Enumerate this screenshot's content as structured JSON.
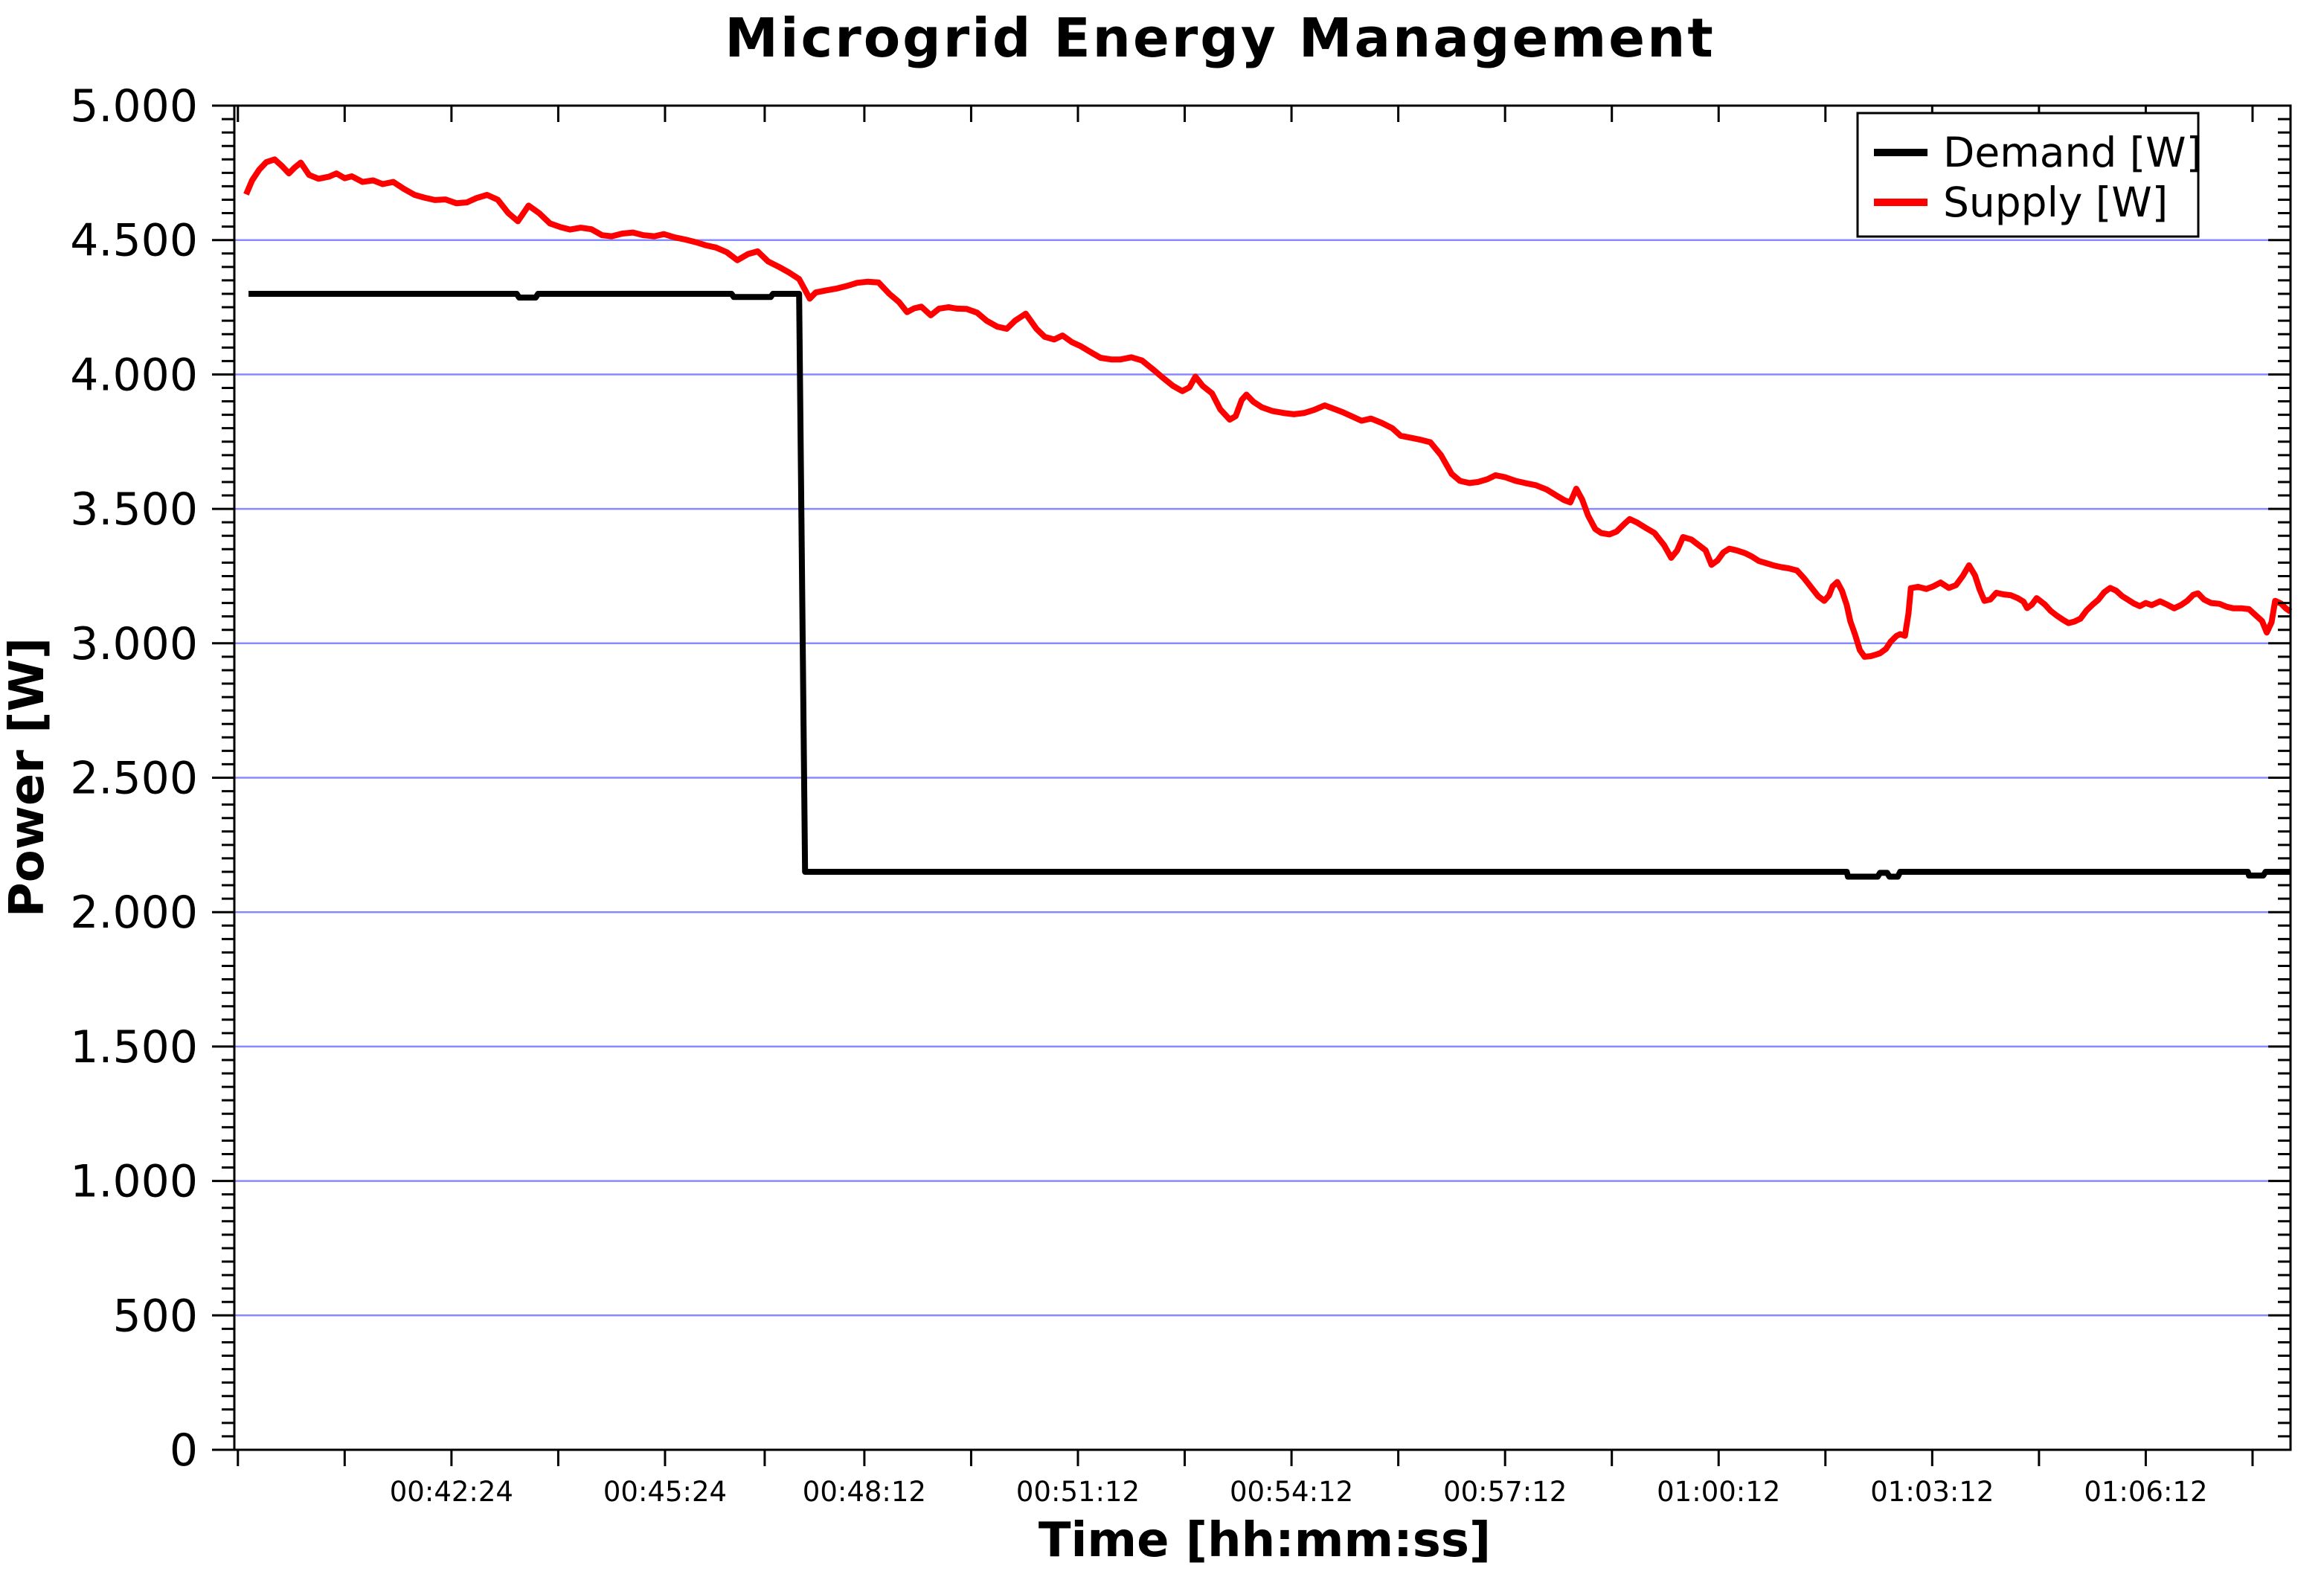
{
  "title": "Microgrid Energy Management",
  "x_axis": {
    "label": "Time [hh:mm:ss]"
  },
  "y_axis": {
    "label": "Power [W]",
    "tick_labels": [
      "0",
      "500",
      "1.000",
      "1.500",
      "2.000",
      "2.500",
      "3.000",
      "3.500",
      "4.000",
      "4.500",
      "5.000"
    ]
  },
  "legend": {
    "entries": [
      {
        "label": "Demand [W]",
        "color": "#000000"
      },
      {
        "label": "Supply [W]",
        "color": "#ff0000"
      }
    ]
  },
  "colors": {
    "background": "#ffffff",
    "axis": "#000000",
    "grid": "#8888ff",
    "demand": "#000000",
    "supply": "#ff0000"
  },
  "chart_data": {
    "type": "line",
    "title": "Microgrid Energy Management",
    "xlabel": "Time [hh:mm:ss]",
    "ylabel": "Power [W]",
    "x_unit": "seconds since 00:00:00",
    "xlim": [
      2361,
      4094
    ],
    "ylim": [
      0,
      5000
    ],
    "y_major_step": 500,
    "y_minor_step": 50,
    "grid": "horizontal major gridlines only, light blue",
    "legend_position": "top-right inside plot",
    "x_tick_labels": [
      {
        "t": 2544,
        "label": "00:42:24"
      },
      {
        "t": 2724,
        "label": "00:45:24"
      },
      {
        "t": 2892,
        "label": "00:48:12"
      },
      {
        "t": 3072,
        "label": "00:51:12"
      },
      {
        "t": 3252,
        "label": "00:54:12"
      },
      {
        "t": 3432,
        "label": "00:57:12"
      },
      {
        "t": 3612,
        "label": "01:00:12"
      },
      {
        "t": 3792,
        "label": "01:03:12"
      },
      {
        "t": 3972,
        "label": "01:06:12"
      }
    ],
    "x_minor_ticks": [
      2364,
      2454,
      2634,
      2808,
      2982,
      3162,
      3342,
      3522,
      3702,
      3882,
      4062
    ],
    "series": [
      {
        "name": "Demand [W]",
        "color": "#000000",
        "points": [
          [
            2373,
            4300
          ],
          [
            2599,
            4300
          ],
          [
            2601,
            4286
          ],
          [
            2615,
            4286
          ],
          [
            2617,
            4300
          ],
          [
            2780,
            4300
          ],
          [
            2782,
            4288
          ],
          [
            2813,
            4288
          ],
          [
            2815,
            4300
          ],
          [
            2837,
            4300
          ],
          [
            2842,
            2150
          ],
          [
            3720,
            2150
          ],
          [
            3721,
            2132
          ],
          [
            3746,
            2132
          ],
          [
            3748,
            2146
          ],
          [
            3754,
            2146
          ],
          [
            3756,
            2132
          ],
          [
            3763,
            2132
          ],
          [
            3765,
            2150
          ],
          [
            4058,
            2150
          ],
          [
            4059,
            2136
          ],
          [
            4071,
            2136
          ],
          [
            4073,
            2150
          ],
          [
            4094,
            2150
          ]
        ]
      },
      {
        "name": "Supply [W]",
        "color": "#ff0000",
        "points": [
          [
            2371,
            4670
          ],
          [
            2376,
            4722
          ],
          [
            2382,
            4762
          ],
          [
            2388,
            4790
          ],
          [
            2395,
            4800
          ],
          [
            2401,
            4776
          ],
          [
            2407,
            4748
          ],
          [
            2412,
            4770
          ],
          [
            2417,
            4788
          ],
          [
            2424,
            4742
          ],
          [
            2432,
            4728
          ],
          [
            2441,
            4736
          ],
          [
            2447,
            4748
          ],
          [
            2454,
            4730
          ],
          [
            2460,
            4737
          ],
          [
            2469,
            4716
          ],
          [
            2478,
            4722
          ],
          [
            2486,
            4708
          ],
          [
            2495,
            4716
          ],
          [
            2504,
            4690
          ],
          [
            2513,
            4668
          ],
          [
            2521,
            4658
          ],
          [
            2530,
            4649
          ],
          [
            2539,
            4651
          ],
          [
            2548,
            4637
          ],
          [
            2557,
            4640
          ],
          [
            2565,
            4656
          ],
          [
            2574,
            4668
          ],
          [
            2583,
            4650
          ],
          [
            2592,
            4600
          ],
          [
            2600,
            4570
          ],
          [
            2609,
            4628
          ],
          [
            2618,
            4600
          ],
          [
            2627,
            4562
          ],
          [
            2636,
            4548
          ],
          [
            2644,
            4539
          ],
          [
            2653,
            4546
          ],
          [
            2662,
            4540
          ],
          [
            2671,
            4518
          ],
          [
            2679,
            4514
          ],
          [
            2688,
            4524
          ],
          [
            2697,
            4528
          ],
          [
            2706,
            4518
          ],
          [
            2715,
            4514
          ],
          [
            2723,
            4522
          ],
          [
            2732,
            4510
          ],
          [
            2741,
            4502
          ],
          [
            2750,
            4492
          ],
          [
            2758,
            4481
          ],
          [
            2767,
            4472
          ],
          [
            2776,
            4455
          ],
          [
            2785,
            4425
          ],
          [
            2794,
            4448
          ],
          [
            2802,
            4458
          ],
          [
            2811,
            4420
          ],
          [
            2820,
            4400
          ],
          [
            2829,
            4378
          ],
          [
            2837,
            4355
          ],
          [
            2846,
            4282
          ],
          [
            2851,
            4305
          ],
          [
            2860,
            4313
          ],
          [
            2869,
            4320
          ],
          [
            2878,
            4330
          ],
          [
            2886,
            4341
          ],
          [
            2895,
            4345
          ],
          [
            2904,
            4342
          ],
          [
            2913,
            4300
          ],
          [
            2921,
            4270
          ],
          [
            2928,
            4232
          ],
          [
            2934,
            4246
          ],
          [
            2940,
            4252
          ],
          [
            2948,
            4220
          ],
          [
            2955,
            4245
          ],
          [
            2963,
            4250
          ],
          [
            2970,
            4245
          ],
          [
            2978,
            4244
          ],
          [
            2987,
            4230
          ],
          [
            2995,
            4200
          ],
          [
            3004,
            4178
          ],
          [
            3012,
            4170
          ],
          [
            3019,
            4200
          ],
          [
            3028,
            4226
          ],
          [
            3037,
            4170
          ],
          [
            3044,
            4140
          ],
          [
            3052,
            4130
          ],
          [
            3059,
            4145
          ],
          [
            3067,
            4120
          ],
          [
            3074,
            4106
          ],
          [
            3082,
            4085
          ],
          [
            3091,
            4062
          ],
          [
            3100,
            4056
          ],
          [
            3108,
            4056
          ],
          [
            3117,
            4064
          ],
          [
            3126,
            4052
          ],
          [
            3135,
            4020
          ],
          [
            3143,
            3990
          ],
          [
            3152,
            3958
          ],
          [
            3160,
            3938
          ],
          [
            3166,
            3952
          ],
          [
            3171,
            3992
          ],
          [
            3177,
            3958
          ],
          [
            3185,
            3930
          ],
          [
            3192,
            3870
          ],
          [
            3200,
            3832
          ],
          [
            3205,
            3845
          ],
          [
            3210,
            3905
          ],
          [
            3214,
            3925
          ],
          [
            3220,
            3898
          ],
          [
            3227,
            3878
          ],
          [
            3236,
            3864
          ],
          [
            3245,
            3857
          ],
          [
            3254,
            3852
          ],
          [
            3263,
            3857
          ],
          [
            3271,
            3868
          ],
          [
            3280,
            3885
          ],
          [
            3288,
            3872
          ],
          [
            3295,
            3860
          ],
          [
            3304,
            3842
          ],
          [
            3311,
            3828
          ],
          [
            3319,
            3836
          ],
          [
            3328,
            3820
          ],
          [
            3337,
            3800
          ],
          [
            3344,
            3772
          ],
          [
            3352,
            3765
          ],
          [
            3360,
            3758
          ],
          [
            3369,
            3748
          ],
          [
            3378,
            3700
          ],
          [
            3387,
            3630
          ],
          [
            3394,
            3604
          ],
          [
            3402,
            3596
          ],
          [
            3409,
            3600
          ],
          [
            3417,
            3610
          ],
          [
            3424,
            3625
          ],
          [
            3432,
            3618
          ],
          [
            3441,
            3604
          ],
          [
            3449,
            3596
          ],
          [
            3458,
            3588
          ],
          [
            3467,
            3572
          ],
          [
            3476,
            3548
          ],
          [
            3482,
            3532
          ],
          [
            3487,
            3524
          ],
          [
            3492,
            3575
          ],
          [
            3497,
            3535
          ],
          [
            3502,
            3475
          ],
          [
            3508,
            3425
          ],
          [
            3513,
            3410
          ],
          [
            3520,
            3405
          ],
          [
            3526,
            3416
          ],
          [
            3532,
            3442
          ],
          [
            3537,
            3462
          ],
          [
            3543,
            3450
          ],
          [
            3551,
            3428
          ],
          [
            3558,
            3410
          ],
          [
            3566,
            3365
          ],
          [
            3572,
            3318
          ],
          [
            3577,
            3345
          ],
          [
            3582,
            3395
          ],
          [
            3589,
            3386
          ],
          [
            3595,
            3366
          ],
          [
            3601,
            3346
          ],
          [
            3606,
            3292
          ],
          [
            3611,
            3308
          ],
          [
            3616,
            3338
          ],
          [
            3621,
            3352
          ],
          [
            3627,
            3346
          ],
          [
            3634,
            3336
          ],
          [
            3640,
            3323
          ],
          [
            3646,
            3306
          ],
          [
            3653,
            3297
          ],
          [
            3659,
            3289
          ],
          [
            3665,
            3283
          ],
          [
            3671,
            3279
          ],
          [
            3678,
            3271
          ],
          [
            3684,
            3242
          ],
          [
            3690,
            3208
          ],
          [
            3696,
            3175
          ],
          [
            3701,
            3158
          ],
          [
            3705,
            3178
          ],
          [
            3708,
            3212
          ],
          [
            3712,
            3228
          ],
          [
            3716,
            3195
          ],
          [
            3720,
            3142
          ],
          [
            3723,
            3082
          ],
          [
            3727,
            3032
          ],
          [
            3731,
            2975
          ],
          [
            3735,
            2950
          ],
          [
            3740,
            2952
          ],
          [
            3744,
            2957
          ],
          [
            3748,
            2963
          ],
          [
            3753,
            2979
          ],
          [
            3757,
            3006
          ],
          [
            3762,
            3028
          ],
          [
            3765,
            3034
          ],
          [
            3769,
            3028
          ],
          [
            3772,
            3110
          ],
          [
            3774,
            3205
          ],
          [
            3780,
            3210
          ],
          [
            3787,
            3202
          ],
          [
            3793,
            3212
          ],
          [
            3799,
            3226
          ],
          [
            3806,
            3206
          ],
          [
            3812,
            3216
          ],
          [
            3818,
            3252
          ],
          [
            3823,
            3290
          ],
          [
            3828,
            3253
          ],
          [
            3832,
            3200
          ],
          [
            3836,
            3158
          ],
          [
            3841,
            3163
          ],
          [
            3846,
            3188
          ],
          [
            3852,
            3182
          ],
          [
            3858,
            3179
          ],
          [
            3864,
            3168
          ],
          [
            3869,
            3155
          ],
          [
            3872,
            3131
          ],
          [
            3876,
            3144
          ],
          [
            3880,
            3168
          ],
          [
            3883,
            3158
          ],
          [
            3887,
            3144
          ],
          [
            3892,
            3120
          ],
          [
            3897,
            3103
          ],
          [
            3902,
            3088
          ],
          [
            3907,
            3075
          ],
          [
            3912,
            3081
          ],
          [
            3917,
            3092
          ],
          [
            3922,
            3122
          ],
          [
            3927,
            3143
          ],
          [
            3932,
            3162
          ],
          [
            3937,
            3190
          ],
          [
            3942,
            3206
          ],
          [
            3947,
            3196
          ],
          [
            3952,
            3176
          ],
          [
            3957,
            3162
          ],
          [
            3962,
            3148
          ],
          [
            3967,
            3138
          ],
          [
            3972,
            3150
          ],
          [
            3977,
            3142
          ],
          [
            3984,
            3156
          ],
          [
            3990,
            3144
          ],
          [
            3996,
            3130
          ],
          [
            4002,
            3143
          ],
          [
            4007,
            3158
          ],
          [
            4012,
            3180
          ],
          [
            4016,
            3186
          ],
          [
            4021,
            3163
          ],
          [
            4027,
            3150
          ],
          [
            4034,
            3147
          ],
          [
            4040,
            3136
          ],
          [
            4046,
            3130
          ],
          [
            4053,
            3130
          ],
          [
            4059,
            3127
          ],
          [
            4065,
            3103
          ],
          [
            4070,
            3083
          ],
          [
            4074,
            3040
          ],
          [
            4078,
            3078
          ],
          [
            4081,
            3158
          ],
          [
            4086,
            3148
          ],
          [
            4090,
            3130
          ],
          [
            4094,
            3118
          ]
        ]
      }
    ]
  }
}
